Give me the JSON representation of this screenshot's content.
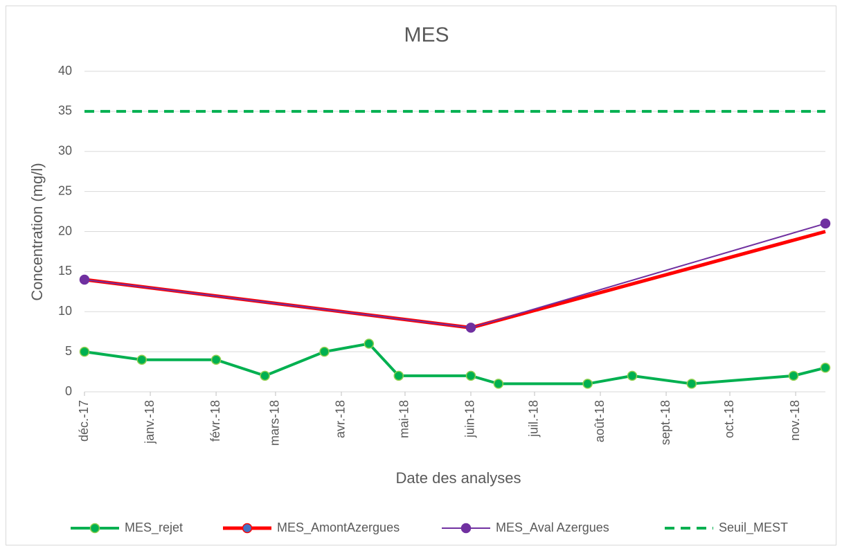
{
  "chart_data": {
    "type": "line",
    "title": "MES",
    "xlabel": "Date des analyses",
    "ylabel": "Concentration (mg/l)",
    "xlim": [
      0,
      349
    ],
    "ylim": [
      0,
      40
    ],
    "xticks": [
      {
        "value": 0,
        "label": "déc.-17"
      },
      {
        "value": 31,
        "label": "janv.-18"
      },
      {
        "value": 62,
        "label": "févr.-18"
      },
      {
        "value": 90,
        "label": "mars-18"
      },
      {
        "value": 121,
        "label": "avr.-18"
      },
      {
        "value": 151,
        "label": "mai-18"
      },
      {
        "value": 182,
        "label": "juin-18"
      },
      {
        "value": 212,
        "label": "juil.-18"
      },
      {
        "value": 243,
        "label": "août-18"
      },
      {
        "value": 274,
        "label": "sept.-18"
      },
      {
        "value": 304,
        "label": "oct.-18"
      },
      {
        "value": 335,
        "label": "nov.-18"
      }
    ],
    "yticks": [
      0,
      5,
      10,
      15,
      20,
      25,
      30,
      35,
      40
    ],
    "grid": true,
    "legend": "bottom",
    "series": [
      {
        "name": "MES_rejet",
        "color": "#00b050",
        "marker_color": "#92d050",
        "x": [
          0,
          27,
          62,
          85,
          113,
          134,
          148,
          182,
          195,
          237,
          258,
          286,
          334,
          349
        ],
        "values": [
          5,
          4,
          4,
          2,
          5,
          6,
          2,
          2,
          1,
          1,
          2,
          1,
          2,
          3
        ]
      },
      {
        "name": "MES_AmontAzergues",
        "color": "#ff0000",
        "marker_color": "#4472c4",
        "x": [
          0,
          182,
          349
        ],
        "values": [
          14,
          8,
          20
        ]
      },
      {
        "name": "MES_Aval Azergues",
        "color": "#7030a0",
        "marker_color": "#7030a0",
        "x": [
          0,
          182,
          349
        ],
        "values": [
          14,
          8,
          21
        ]
      },
      {
        "name": "Seuil_MEST",
        "color": "#00b050",
        "dashed": true,
        "x": [
          0,
          349
        ],
        "values": [
          35,
          35
        ]
      }
    ]
  }
}
